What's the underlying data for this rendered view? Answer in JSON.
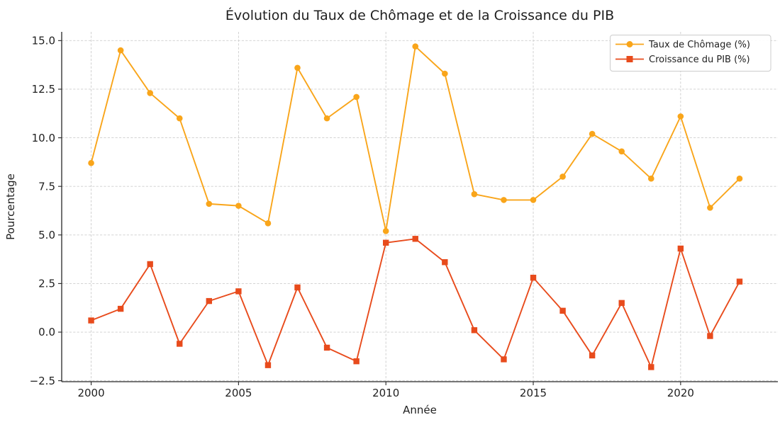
{
  "figure": {
    "title": "Évolution du Taux de Chômage et de la Croissance du PIB",
    "xlabel": "Année",
    "ylabel": "Pourcentage"
  },
  "chart_data": {
    "type": "line",
    "title": "Évolution du Taux de Chômage et de la Croissance du PIB",
    "xlabel": "Année",
    "ylabel": "Pourcentage",
    "x": [
      2000,
      2001,
      2002,
      2003,
      2004,
      2005,
      2006,
      2007,
      2008,
      2009,
      2010,
      2011,
      2012,
      2013,
      2014,
      2015,
      2016,
      2017,
      2018,
      2019,
      2020,
      2021,
      2022
    ],
    "series": [
      {
        "name": "Taux de Chômage (%)",
        "color": "#F9A51A",
        "marker": "circle",
        "values": [
          8.7,
          14.5,
          12.3,
          11.0,
          6.6,
          6.5,
          5.6,
          13.6,
          11.0,
          12.1,
          5.2,
          14.7,
          13.3,
          7.1,
          6.8,
          6.8,
          8.0,
          10.2,
          9.3,
          7.9,
          11.1,
          6.4,
          7.9
        ]
      },
      {
        "name": "Croissance du PIB (%)",
        "color": "#E84B1C",
        "marker": "square",
        "values": [
          0.6,
          1.2,
          3.5,
          -0.6,
          1.6,
          2.1,
          -1.7,
          2.3,
          -0.8,
          -1.5,
          4.6,
          4.8,
          3.6,
          0.1,
          -1.4,
          2.8,
          1.1,
          -1.2,
          1.5,
          -1.8,
          4.3,
          -0.2,
          2.6
        ]
      }
    ],
    "xticks": [
      2000,
      2005,
      2010,
      2015,
      2020
    ],
    "yticks": [
      -2.5,
      0.0,
      2.5,
      5.0,
      7.5,
      10.0,
      12.5,
      15.0
    ],
    "xlim": [
      1999.0,
      2023.3
    ],
    "ylim": [
      -2.55,
      15.45
    ],
    "grid": true,
    "grid_style": "dashed",
    "grid_color": "#cdcdcd",
    "spine_color": "#262626",
    "legend_position": "upper right"
  }
}
